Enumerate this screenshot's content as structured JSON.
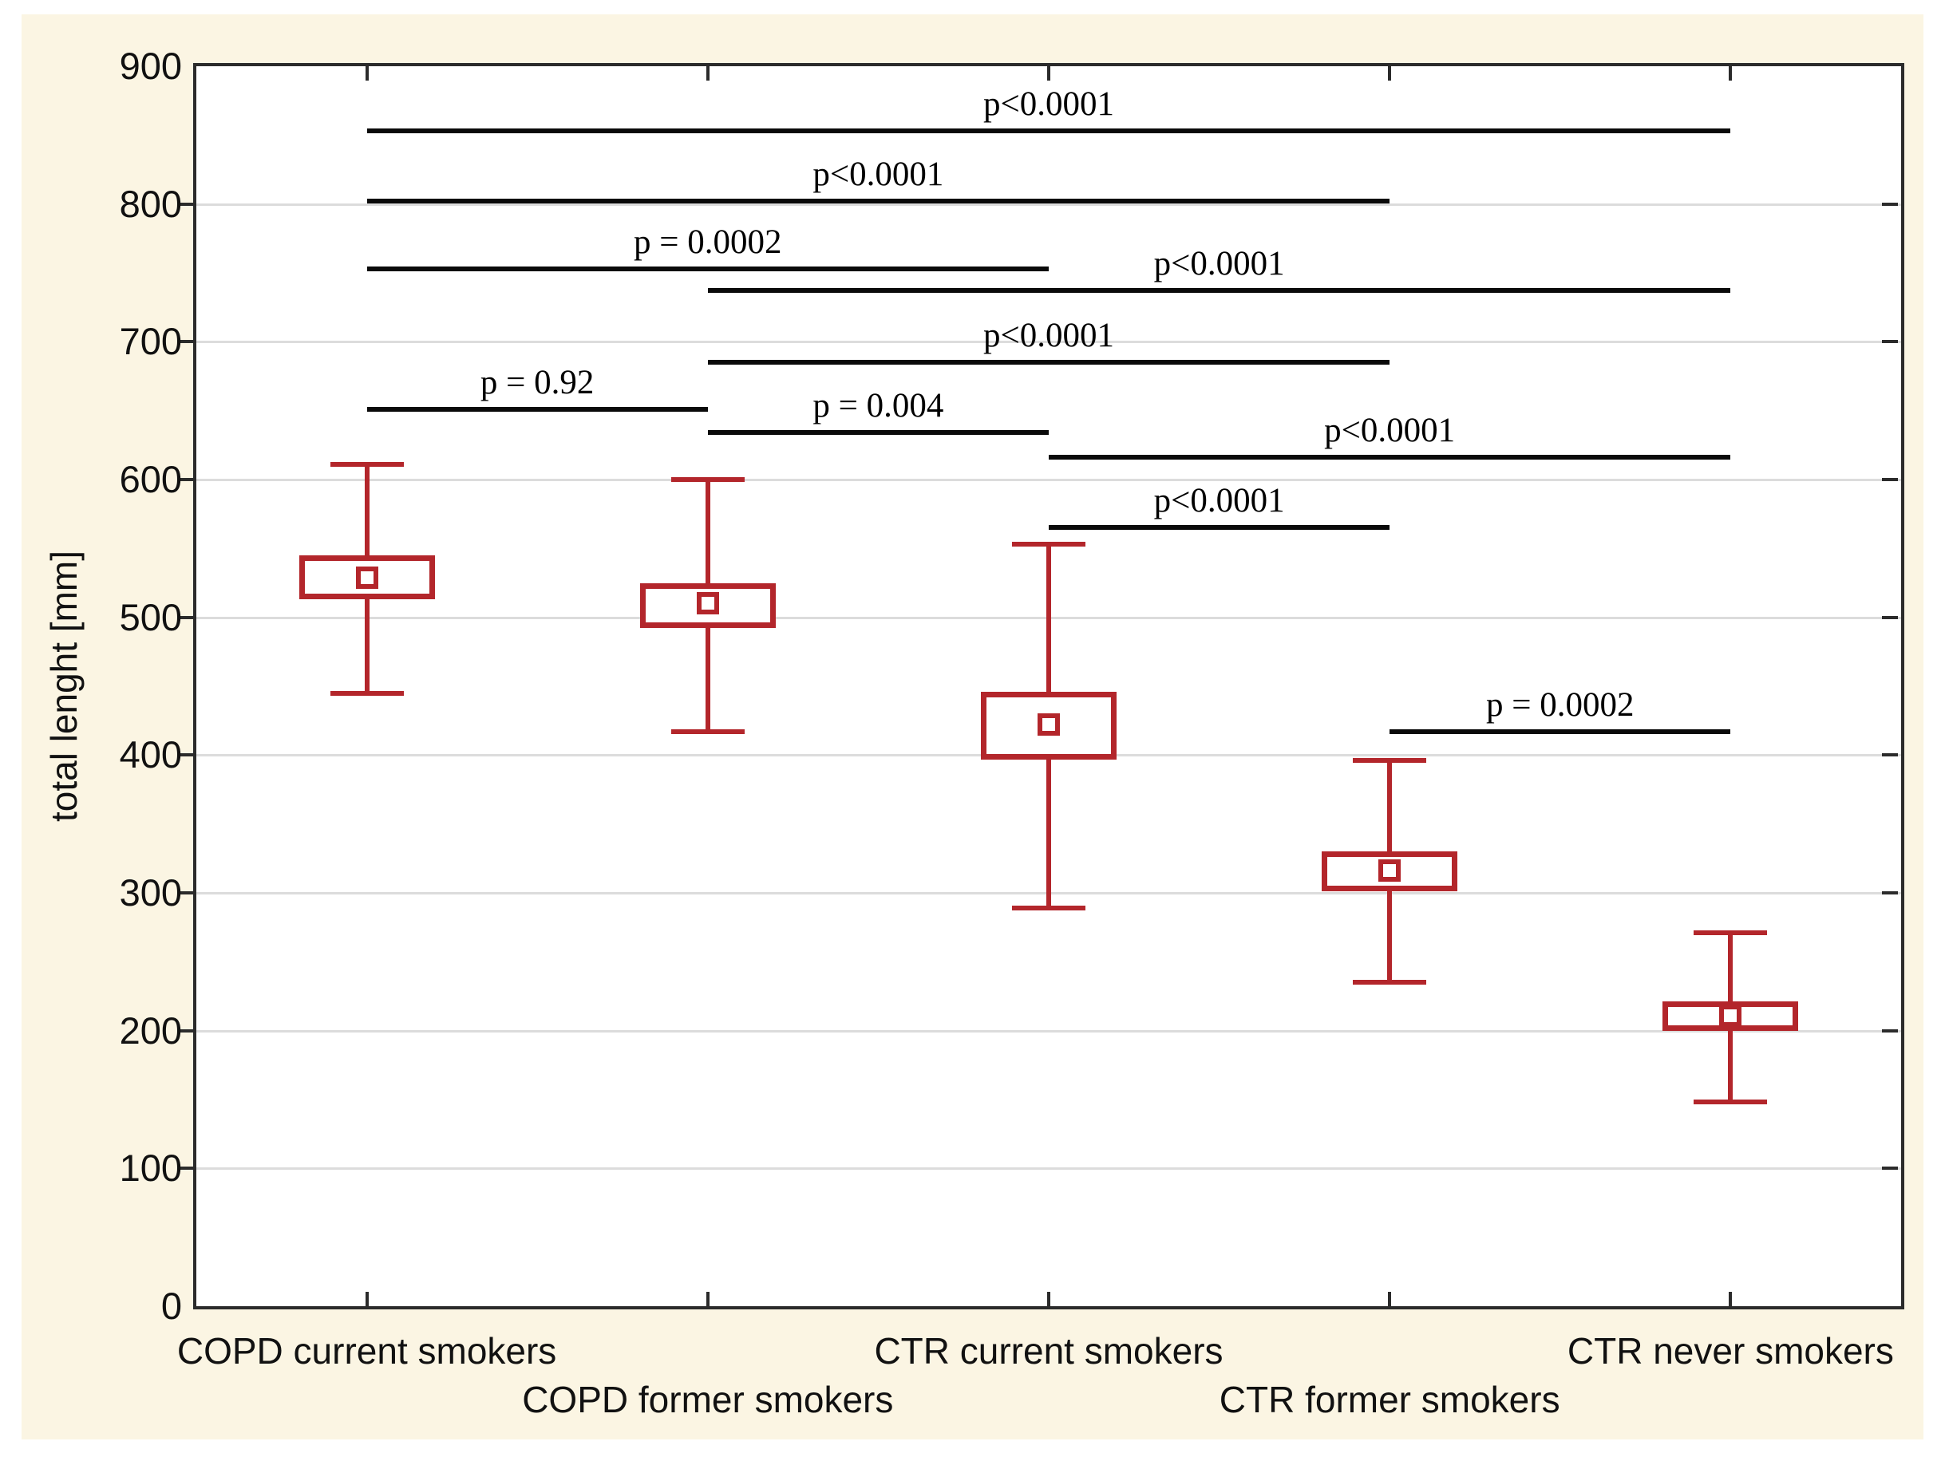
{
  "chart_data": {
    "type": "box",
    "title": "",
    "ylabel": "total lenght [mm]",
    "xlabel": "",
    "ylim": [
      0,
      900
    ],
    "ytick_interval": 100,
    "yticks": [
      0,
      100,
      200,
      300,
      400,
      500,
      600,
      700,
      800,
      900
    ],
    "grid": "horizontal",
    "legend": "none",
    "marker_meaning": "small square = mean, box = mean±SE range, whiskers = min-max range",
    "categories": [
      "COPD current smokers",
      "COPD former smokers",
      "CTR current smokers",
      "CTR former smokers",
      "CTR never smokers"
    ],
    "series": [
      {
        "name": "COPD current smokers",
        "slug": "copd-current-smokers",
        "whisker_low": 445,
        "box_low": 513,
        "mean": 529,
        "box_high": 545,
        "whisker_high": 611
      },
      {
        "name": "COPD former smokers",
        "slug": "copd-former-smokers",
        "whisker_low": 417,
        "box_low": 492,
        "mean": 510,
        "box_high": 525,
        "whisker_high": 600
      },
      {
        "name": "CTR current smokers",
        "slug": "ctr-current-smokers",
        "whisker_low": 289,
        "box_low": 397,
        "mean": 422,
        "box_high": 446,
        "whisker_high": 553
      },
      {
        "name": "CTR former smokers",
        "slug": "ctr-former-smokers",
        "whisker_low": 235,
        "box_low": 301,
        "mean": 316,
        "box_high": 330,
        "whisker_high": 396
      },
      {
        "name": "CTR never smokers",
        "slug": "ctr-never-smokers",
        "whisker_low": 148,
        "box_low": 200,
        "mean": 211,
        "box_high": 221,
        "whisker_high": 271
      }
    ],
    "significance_lines": [
      {
        "from": 0,
        "to": 4,
        "level": 853,
        "label": "p<0.0001"
      },
      {
        "from": 0,
        "to": 3,
        "level": 802,
        "label": "p<0.0001"
      },
      {
        "from": 0,
        "to": 2,
        "level": 753,
        "label": "p = 0.0002"
      },
      {
        "from": 1,
        "to": 4,
        "level": 737,
        "label": "p<0.0001"
      },
      {
        "from": 1,
        "to": 3,
        "level": 685,
        "label": "p<0.0001"
      },
      {
        "from": 0,
        "to": 1,
        "level": 651,
        "label": "p = 0.92"
      },
      {
        "from": 1,
        "to": 2,
        "level": 634,
        "label": "p = 0.004"
      },
      {
        "from": 2,
        "to": 4,
        "level": 616,
        "label": "p<0.0001"
      },
      {
        "from": 2,
        "to": 3,
        "level": 565,
        "label": "p<0.0001"
      },
      {
        "from": 3,
        "to": 4,
        "level": 417,
        "label": "p = 0.0002"
      }
    ],
    "colors": {
      "background": "#fbf5e3",
      "plot_background": "#ffffff",
      "grid": "#dcdcdc",
      "axis": "#2b2b2b",
      "box": "#b3262b",
      "sig_line": "#0a0a0a",
      "text": "#111111"
    }
  }
}
